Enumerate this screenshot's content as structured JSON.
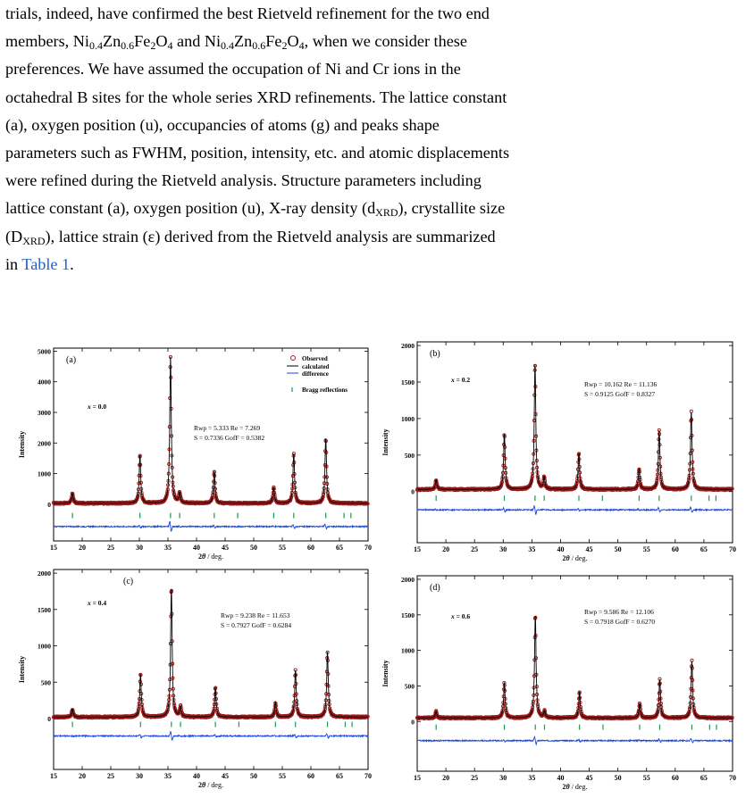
{
  "paragraph": {
    "l1": "trials, indeed, have confirmed the best Rietveld refinement for the two end",
    "l2_a": "members,  Ni",
    "l2_b": "0.4",
    "l2_c": "Zn",
    "l2_d": "0.6",
    "l2_e": "Fe",
    "l2_f": "2",
    "l2_g": "O",
    "l2_h": "4",
    "l2_i": "  and  Ni",
    "l2_j": "0.4",
    "l2_k": "Zn",
    "l2_l": "0.6",
    "l2_m": "Fe",
    "l2_n": "2",
    "l2_o": "O",
    "l2_p": "4",
    "l2_q": ",   when   we   consider   these",
    "l3": "preferences. We have assumed the occupation of Ni and Cr ions in the",
    "l4": "octahedral B sites for the whole series XRD refinements. The lattice constant",
    "l5": "(a), oxygen position (u), occupancies of atoms (g) and peaks shape",
    "l6": "parameters such as FWHM, position, intensity, etc. and atomic displacements",
    "l7": "were refined during the Rietveld analysis. Structure parameters including",
    "l8_a": "lattice constant (a), oxygen position (u), X-ray density (d",
    "l8_b": "XRD",
    "l8_c": "), crystallite size",
    "l9_a": "(D",
    "l9_b": "XRD",
    "l9_c": "), lattice strain (ε) derived from the Rietveld analysis are summarized",
    "l10_a": "in ",
    "l10_link": "Table 1",
    "l10_c": "."
  },
  "legend": {
    "observed": "Observed",
    "calculated": "calculated",
    "difference": "difference",
    "bragg": "Bragg reflections"
  },
  "colors": {
    "observed": "#9b1b1b",
    "calculated": "#000000",
    "difference": "#1a46e0",
    "bragg": "#1a9a55",
    "link": "#1f5fd6"
  },
  "axis": {
    "ylabel": "Intensity",
    "xlabel_theta": "θ",
    "xlabel_unit": " / deg.",
    "xticks": [
      "15",
      "20",
      "25",
      "30",
      "35",
      "40",
      "45",
      "50",
      "55",
      "60",
      "65",
      "70"
    ]
  },
  "chart_data": [
    {
      "type": "line",
      "panel": "(a)",
      "composition": "x = 0.0",
      "stats": [
        "Rwp = 5.333     Re = 7.269",
        "S = 0.7336   GofF = 0.5382"
      ],
      "xlim": [
        15,
        70
      ],
      "ylim": [
        -1200,
        5100
      ],
      "yticks": [
        0,
        1000,
        2000,
        3000,
        4000,
        5000
      ],
      "baseline": 30,
      "peaks": [
        [
          18.3,
          330
        ],
        [
          30.1,
          1570
        ],
        [
          35.45,
          4800
        ],
        [
          37.05,
          330
        ],
        [
          43.1,
          1040
        ],
        [
          53.5,
          520
        ],
        [
          57.0,
          1620
        ],
        [
          62.6,
          2120
        ]
      ],
      "bragg_y": -370,
      "diff_y": -730,
      "bragg_positions": [
        18.3,
        30.1,
        35.45,
        37.05,
        43.1,
        47.2,
        53.5,
        57.0,
        62.6,
        65.8,
        67.0
      ]
    },
    {
      "type": "line",
      "panel": "(b)",
      "composition": "x = 0.2",
      "stats": [
        "Rwp = 10.162     Re = 11.136",
        "S = 0.9125   GofF = 0.8327"
      ],
      "xlim": [
        15,
        70
      ],
      "ylim": [
        -700,
        2050
      ],
      "yticks": [
        0,
        500,
        1000,
        1500,
        2000
      ],
      "baseline": 30,
      "peaks": [
        [
          18.3,
          130
        ],
        [
          30.2,
          760
        ],
        [
          35.55,
          1710
        ],
        [
          37.15,
          160
        ],
        [
          43.2,
          500
        ],
        [
          53.7,
          280
        ],
        [
          57.2,
          810
        ],
        [
          62.8,
          1060
        ]
      ],
      "bragg_y": -90,
      "diff_y": -250,
      "bragg_positions": [
        18.3,
        30.2,
        35.55,
        37.15,
        43.2,
        47.3,
        53.7,
        57.2,
        62.8,
        65.9,
        67.1
      ]
    },
    {
      "type": "line",
      "panel": "(c)",
      "composition": "x = 0.4",
      "stats": [
        "Rwp = 9.238     Re = 11.653",
        "S = 0.7927   GofF = 0.6284"
      ],
      "xlim": [
        15,
        70
      ],
      "ylim": [
        -700,
        2050
      ],
      "yticks": [
        0,
        500,
        1000,
        1500,
        2000
      ],
      "baseline": 20,
      "peaks": [
        [
          18.3,
          110
        ],
        [
          30.2,
          600
        ],
        [
          35.6,
          1770
        ],
        [
          37.2,
          140
        ],
        [
          43.3,
          410
        ],
        [
          53.8,
          200
        ],
        [
          57.3,
          640
        ],
        [
          62.9,
          900
        ]
      ],
      "bragg_y": -80,
      "diff_y": -240,
      "bragg_positions": [
        18.3,
        30.2,
        35.6,
        37.2,
        43.3,
        47.4,
        53.8,
        57.3,
        62.9,
        66.0,
        67.2
      ]
    },
    {
      "type": "line",
      "panel": "(d)",
      "composition": "x = 0.6",
      "stats": [
        "Rwp = 9.586     Re = 12.106",
        "S = 0.7918   GofF = 0.6270"
      ],
      "xlim": [
        15,
        70
      ],
      "ylim": [
        -700,
        2050
      ],
      "yticks": [
        0,
        500,
        1000,
        1500,
        2000
      ],
      "baseline": 50,
      "peaks": [
        [
          18.3,
          90
        ],
        [
          30.2,
          490
        ],
        [
          35.6,
          1440
        ],
        [
          37.2,
          90
        ],
        [
          43.3,
          360
        ],
        [
          53.8,
          200
        ],
        [
          57.3,
          540
        ],
        [
          62.9,
          800
        ]
      ],
      "bragg_y": -80,
      "diff_y": -270,
      "bragg_positions": [
        18.3,
        30.2,
        35.6,
        37.2,
        43.3,
        47.4,
        53.8,
        57.3,
        62.9,
        66.0,
        67.2
      ]
    }
  ]
}
